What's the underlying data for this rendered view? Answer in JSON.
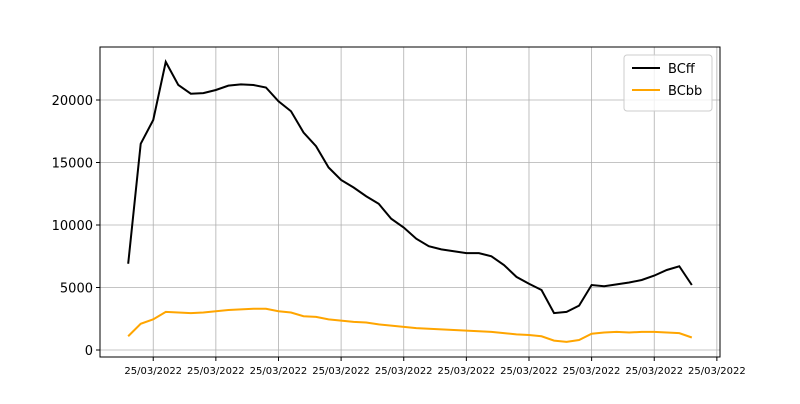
{
  "chart_data": {
    "type": "line",
    "x": [
      0,
      1,
      2,
      3,
      4,
      5,
      6,
      7,
      8,
      9,
      10,
      11,
      12,
      13,
      14,
      15,
      16,
      17,
      18,
      19,
      20,
      21,
      22,
      23,
      24,
      25,
      26,
      27,
      28,
      29,
      30,
      31,
      32,
      33,
      34,
      35,
      36,
      37,
      38,
      39,
      40,
      41,
      42,
      43,
      44,
      45
    ],
    "series": [
      {
        "name": "BCff",
        "color": "#000000",
        "values": [
          6900,
          16500,
          18400,
          23050,
          21200,
          20500,
          20550,
          20800,
          21150,
          21250,
          21200,
          21000,
          19900,
          19100,
          17400,
          16300,
          14600,
          13600,
          13000,
          12300,
          11700,
          10500,
          9800,
          8900,
          8300,
          8050,
          7900,
          7750,
          7750,
          7500,
          6800,
          5850,
          5300,
          4800,
          2950,
          3050,
          3550,
          5200,
          5100,
          5250,
          5400,
          5600,
          5950,
          6400,
          6700,
          5200
        ]
      },
      {
        "name": "BCbb",
        "color": "#ffa500",
        "values": [
          1100,
          2100,
          2450,
          3050,
          3000,
          2950,
          3000,
          3100,
          3200,
          3250,
          3300,
          3300,
          3100,
          3000,
          2700,
          2650,
          2450,
          2350,
          2250,
          2200,
          2050,
          1950,
          1850,
          1750,
          1700,
          1650,
          1600,
          1550,
          1500,
          1450,
          1350,
          1250,
          1200,
          1100,
          750,
          650,
          800,
          1300,
          1400,
          1450,
          1400,
          1450,
          1450,
          1400,
          1350,
          1000
        ]
      }
    ],
    "xlim": [
      -2.25,
      47.25
    ],
    "xticks": [
      {
        "value": 2,
        "label": "25/03/2022"
      },
      {
        "value": 7,
        "label": "25/03/2022"
      },
      {
        "value": 12,
        "label": "25/03/2022"
      },
      {
        "value": 17,
        "label": "25/03/2022"
      },
      {
        "value": 22,
        "label": "25/03/2022"
      },
      {
        "value": 27,
        "label": "25/03/2022"
      },
      {
        "value": 32,
        "label": "25/03/2022"
      },
      {
        "value": 37,
        "label": "25/03/2022"
      },
      {
        "value": 42,
        "label": "25/03/2022"
      },
      {
        "value": 47,
        "label": "25/03/2022"
      }
    ],
    "ylim": [
      -560,
      24240
    ],
    "yticks": [
      0,
      5000,
      10000,
      15000,
      20000
    ],
    "grid": true,
    "legend": "upper right"
  }
}
